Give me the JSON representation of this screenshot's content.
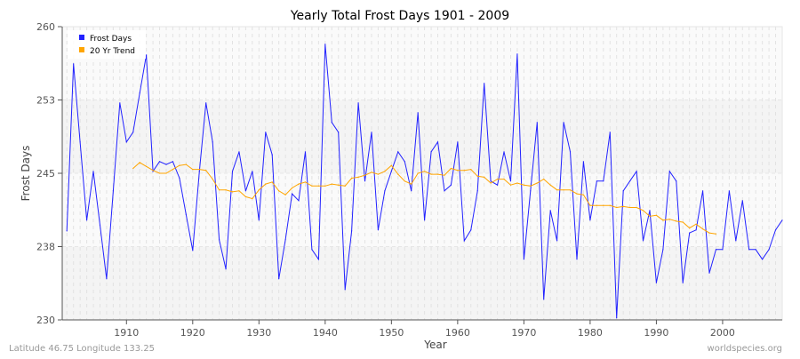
{
  "chart_data": {
    "type": "line",
    "title": "Yearly Total Frost Days 1901 - 2009",
    "xlabel": "Year",
    "ylabel": "Frost Days",
    "xlim": [
      1900.3,
      2009
    ],
    "ylim": [
      230,
      260
    ],
    "x_ticks": [
      1910,
      1920,
      1930,
      1940,
      1950,
      1960,
      1970,
      1980,
      1990,
      2000
    ],
    "y_ticks": [
      {
        "value": 230,
        "label": "230"
      },
      {
        "value": 237.5,
        "label": "238"
      },
      {
        "value": 245,
        "label": "245"
      },
      {
        "value": 252.5,
        "label": "253"
      },
      {
        "value": 260,
        "label": "260"
      }
    ],
    "grid": true,
    "legend_placement": "top-left",
    "series": [
      {
        "name": "Frost Days",
        "color": "#2222ff",
        "start_year": 1901,
        "values": [
          239.1,
          256.2,
          248.2,
          240.2,
          245.2,
          239.7,
          234.2,
          243.2,
          252.2,
          248.2,
          249.2,
          253.2,
          257.1,
          245.2,
          246.2,
          245.9,
          246.2,
          244.5,
          240.8,
          237.1,
          245.2,
          252.2,
          248.2,
          238.2,
          235.2,
          245.2,
          247.2,
          243.2,
          245.2,
          240.2,
          249.2,
          246.9,
          234.2,
          238.2,
          242.9,
          242.2,
          247.2,
          237.2,
          236.2,
          258.2,
          250.2,
          249.2,
          233.1,
          239.1,
          252.2,
          244.2,
          249.2,
          239.2,
          243.2,
          245.2,
          247.2,
          246.2,
          243.2,
          251.2,
          240.2,
          247.2,
          248.2,
          243.2,
          243.8,
          248.2,
          238.1,
          239.2,
          243.2,
          254.2,
          244.2,
          243.8,
          247.2,
          244.2,
          257.2,
          236.2,
          243.2,
          250.2,
          232.1,
          241.2,
          238.1,
          250.2,
          247.2,
          236.2,
          246.2,
          240.2,
          244.2,
          244.2,
          249.2,
          230.2,
          243.2,
          244.2,
          245.2,
          238.1,
          241.2,
          233.8,
          237.2,
          245.2,
          244.2,
          233.8,
          238.9,
          239.2,
          243.2,
          234.8,
          237.2,
          237.2,
          243.2,
          238.1,
          242.2,
          237.2,
          237.2,
          236.2,
          237.2,
          239.2,
          240.2
        ]
      },
      {
        "name": "20 Yr Trend",
        "color": "#ffa500",
        "start_year": 1911,
        "values": [
          245.5,
          246.1,
          245.7,
          245.3,
          245.0,
          245.0,
          245.4,
          245.8,
          245.9,
          245.4,
          245.4,
          245.3,
          244.4,
          243.3,
          243.3,
          243.1,
          243.2,
          242.6,
          242.4,
          243.3,
          243.9,
          244.1,
          243.2,
          242.8,
          243.5,
          243.9,
          244.1,
          243.7,
          243.7,
          243.7,
          243.9,
          243.8,
          243.7,
          244.5,
          244.6,
          244.8,
          245.1,
          244.9,
          245.2,
          245.8,
          244.9,
          244.2,
          243.9,
          245.0,
          245.2,
          244.9,
          244.9,
          244.8,
          245.5,
          245.3,
          245.3,
          245.4,
          244.7,
          244.6,
          244.0,
          244.4,
          244.4,
          243.8,
          244.0,
          243.8,
          243.7,
          244.0,
          244.4,
          243.8,
          243.3,
          243.3,
          243.3,
          242.9,
          242.8,
          241.7,
          241.7,
          241.7,
          241.7,
          241.5,
          241.6,
          241.5,
          241.5,
          241.2,
          240.6,
          240.7,
          240.2,
          240.3,
          240.1,
          240.0,
          239.4,
          239.8,
          239.3,
          238.9,
          238.8
        ]
      }
    ]
  },
  "footer": {
    "location": "Latitude 46.75 Longitude 133.25",
    "source": "worldspecies.org"
  }
}
